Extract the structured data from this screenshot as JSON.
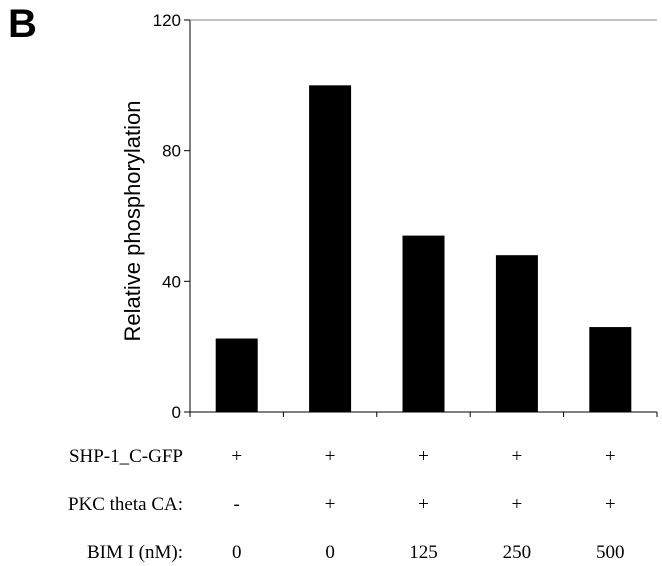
{
  "panel_label": "B",
  "chart_data": {
    "type": "bar",
    "ylabel": "Relative phosphorylation",
    "ylim": [
      0,
      120
    ],
    "yticks": [
      "0",
      "40",
      "80",
      "120"
    ],
    "ytick_values": [
      0,
      40,
      80,
      120
    ],
    "values": [
      22.5,
      100,
      54,
      48,
      26
    ],
    "bar_color": "#000000",
    "conditions": [
      {
        "label": "SHP-1_C-GFP",
        "cells": [
          "+",
          "+",
          "+",
          "+",
          "+"
        ]
      },
      {
        "label": "PKC theta CA:",
        "cells": [
          "-",
          "+",
          "+",
          "+",
          "+"
        ]
      },
      {
        "label": "BIM I (nM):",
        "cells": [
          "0",
          "0",
          "125",
          "250",
          "500"
        ]
      }
    ]
  }
}
